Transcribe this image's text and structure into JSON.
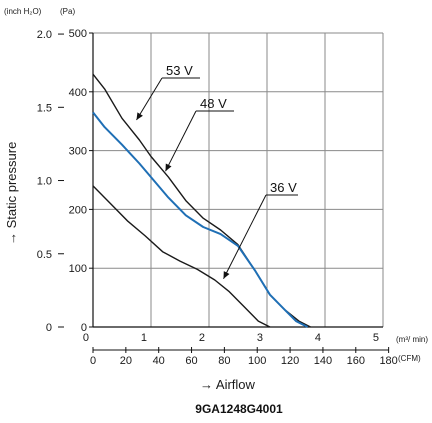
{
  "chart_data": {
    "type": "line",
    "title": "9GA1248G4001",
    "xlabel": "→ Airflow",
    "ylabel": "→ Static pressure",
    "x_primary": {
      "unit": "(m³/ min)",
      "ticks": [
        "0",
        "1",
        "2",
        "3",
        "4",
        "5"
      ],
      "lim": [
        0,
        5
      ]
    },
    "x_secondary": {
      "unit": "(CFM)",
      "ticks": [
        "0",
        "20",
        "40",
        "60",
        "80",
        "100",
        "120",
        "140",
        "160",
        "180"
      ]
    },
    "y_primary": {
      "unit": "(Pa)",
      "ticks": [
        "0",
        "100",
        "200",
        "300",
        "400",
        "500"
      ],
      "lim": [
        0,
        500
      ]
    },
    "y_secondary": {
      "unit": "(inch H₂O)",
      "ticks": [
        "0",
        "0.5",
        "1.0",
        "1.5",
        "2.0"
      ]
    },
    "grid": true,
    "series": [
      {
        "name": "53 V",
        "color": "#1a1a1a",
        "x": [
          0,
          0.2,
          0.5,
          0.8,
          1.0,
          1.3,
          1.6,
          1.9,
          2.2,
          2.5,
          2.8,
          3.05,
          3.3,
          3.55,
          3.75
        ],
        "y": [
          430,
          405,
          355,
          318,
          290,
          255,
          215,
          185,
          165,
          140,
          95,
          55,
          30,
          10,
          0
        ]
      },
      {
        "name": "48 V",
        "color": "#1f6fb5",
        "x": [
          0,
          0.2,
          0.5,
          0.8,
          1.0,
          1.3,
          1.6,
          1.9,
          2.2,
          2.5,
          2.8,
          3.05,
          3.3,
          3.5,
          3.7
        ],
        "y": [
          365,
          340,
          310,
          278,
          255,
          220,
          190,
          170,
          158,
          138,
          95,
          55,
          30,
          10,
          0
        ]
      },
      {
        "name": "36 V",
        "color": "#1a1a1a",
        "x": [
          0,
          0.3,
          0.6,
          0.9,
          1.2,
          1.5,
          1.8,
          2.1,
          2.35,
          2.6,
          2.85,
          3.05
        ],
        "y": [
          240,
          210,
          180,
          155,
          128,
          112,
          98,
          80,
          60,
          35,
          10,
          0
        ]
      }
    ],
    "annotations": [
      "53 V",
      "48 V",
      "36 V"
    ]
  }
}
